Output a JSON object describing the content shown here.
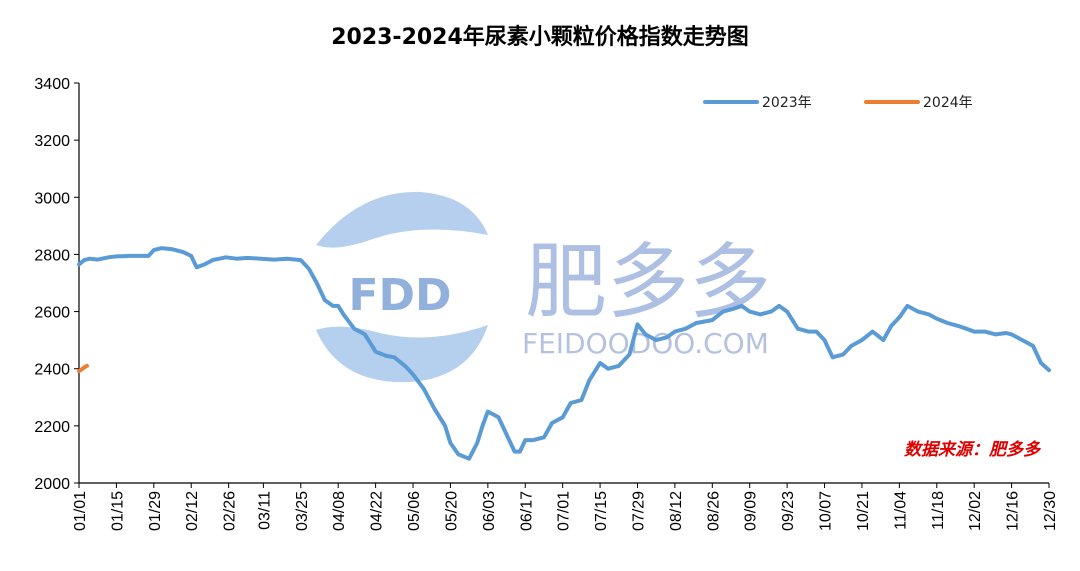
{
  "chart_data": {
    "type": "line",
    "title": "2023-2024年尿素小颗粒价格指数走势图",
    "xlabel": "",
    "ylabel": "",
    "ylim": [
      2000,
      3400
    ],
    "yticks": [
      2000,
      2200,
      2400,
      2600,
      2800,
      3000,
      3200,
      3400
    ],
    "x_ticks": [
      "01/01",
      "01/15",
      "01/29",
      "02/12",
      "02/26",
      "03/11",
      "03/25",
      "04/08",
      "04/22",
      "05/06",
      "05/20",
      "06/03",
      "06/17",
      "07/01",
      "07/15",
      "07/29",
      "08/12",
      "08/26",
      "09/09",
      "09/23",
      "10/07",
      "10/21",
      "11/04",
      "11/18",
      "12/02",
      "12/16",
      "12/30"
    ],
    "grid": false,
    "legend_position": "top-right",
    "series": [
      {
        "name": "2023年",
        "color": "#5B9BD5",
        "x": [
          "01/01",
          "01/03",
          "01/05",
          "01/08",
          "01/12",
          "01/15",
          "01/20",
          "01/27",
          "01/29",
          "02/01",
          "02/05",
          "02/09",
          "02/12",
          "02/14",
          "02/17",
          "02/20",
          "02/25",
          "03/01",
          "03/05",
          "03/10",
          "03/15",
          "03/20",
          "03/25",
          "03/28",
          "03/31",
          "04/03",
          "04/06",
          "04/08",
          "04/10",
          "04/14",
          "04/18",
          "04/22",
          "04/26",
          "04/29",
          "05/03",
          "05/06",
          "05/10",
          "05/14",
          "05/18",
          "05/20",
          "05/23",
          "05/27",
          "05/30",
          "06/01",
          "06/03",
          "06/05",
          "06/07",
          "06/10",
          "06/13",
          "06/15",
          "06/17",
          "06/20",
          "06/24",
          "06/27",
          "07/01",
          "07/04",
          "07/08",
          "07/11",
          "07/15",
          "07/18",
          "07/22",
          "07/26",
          "07/29",
          "08/01",
          "08/05",
          "08/09",
          "08/12",
          "08/16",
          "08/20",
          "08/26",
          "08/30",
          "09/03",
          "09/06",
          "09/09",
          "09/13",
          "09/17",
          "09/20",
          "09/23",
          "09/27",
          "10/01",
          "10/04",
          "10/07",
          "10/10",
          "10/14",
          "10/17",
          "10/21",
          "10/25",
          "10/29",
          "11/01",
          "11/04",
          "11/07",
          "11/11",
          "11/15",
          "11/18",
          "11/22",
          "11/26",
          "11/29",
          "12/02",
          "12/06",
          "12/10",
          "12/14",
          "12/16",
          "12/20",
          "12/24",
          "12/27",
          "12/30"
        ],
        "values": [
          2765,
          2780,
          2785,
          2782,
          2790,
          2793,
          2795,
          2795,
          2815,
          2822,
          2818,
          2808,
          2795,
          2755,
          2765,
          2780,
          2790,
          2785,
          2788,
          2785,
          2782,
          2785,
          2780,
          2750,
          2700,
          2640,
          2620,
          2620,
          2590,
          2540,
          2520,
          2460,
          2445,
          2440,
          2410,
          2380,
          2330,
          2260,
          2200,
          2140,
          2100,
          2085,
          2140,
          2200,
          2250,
          2240,
          2230,
          2170,
          2110,
          2110,
          2150,
          2150,
          2160,
          2210,
          2230,
          2280,
          2290,
          2360,
          2420,
          2400,
          2410,
          2450,
          2555,
          2520,
          2500,
          2510,
          2530,
          2540,
          2560,
          2570,
          2600,
          2610,
          2620,
          2600,
          2590,
          2600,
          2620,
          2600,
          2540,
          2530,
          2530,
          2500,
          2440,
          2450,
          2480,
          2500,
          2530,
          2500,
          2550,
          2580,
          2620,
          2600,
          2590,
          2575,
          2560,
          2550,
          2540,
          2530,
          2530,
          2520,
          2525,
          2520,
          2500,
          2480,
          2420,
          2395
        ]
      },
      {
        "name": "2024年",
        "color": "#ED7D31",
        "x": [
          "01/01",
          "01/02",
          "01/03",
          "01/04"
        ],
        "values": [
          2392,
          2398,
          2405,
          2410
        ]
      }
    ]
  },
  "watermark": {
    "logo_text": "FDD",
    "brand_cn": "肥多多",
    "brand_en": "FEIDOODOO.COM"
  },
  "source_note": "数据来源：肥多多",
  "colors": {
    "series_2023": "#5B9BD5",
    "series_2024": "#ED7D31",
    "source_text": "#E00000",
    "watermark": "#8FA8D8"
  }
}
